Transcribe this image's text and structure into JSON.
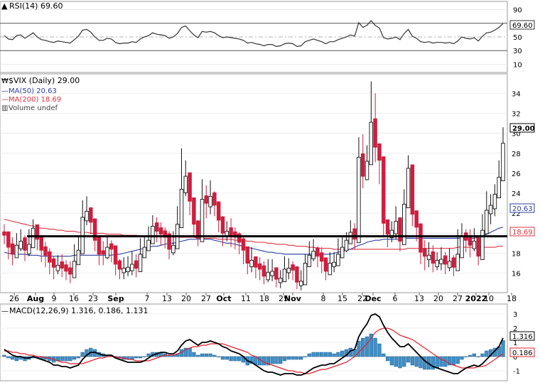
{
  "rsi_panel": {
    "label": "RSI(14) 69.60",
    "last": 69.6,
    "ticks": [
      90,
      70,
      50,
      30,
      10
    ],
    "last_label": "69.60",
    "overbought": 70,
    "oversold": 30
  },
  "price_panel": {
    "title": "$VIX (Daily) 29.00",
    "ma50_label": "MA(50) 20.63",
    "ma200_label": "MA(200) 18.69",
    "volume_label": "Volume undef",
    "ticks": [
      34,
      32,
      30,
      28,
      26,
      24,
      22,
      20,
      18,
      16
    ],
    "last_label": "29.00",
    "ma50_last_label": "20.63",
    "ma200_last_label": "18.69",
    "support_line": 19.7
  },
  "x_labels": [
    "26",
    "Aug",
    "9",
    "16",
    "23",
    "Sep",
    "7",
    "13",
    "20",
    "27",
    "Oct",
    "11",
    "18",
    "25",
    "Nov",
    "8",
    "15",
    "22",
    "Dec",
    "6",
    "13",
    "20",
    "27",
    "2022",
    "10",
    "18"
  ],
  "macd_panel": {
    "label": "MACD(12,26,9) 1.316, 0.186, 1.131",
    "ticks": [
      3,
      2,
      1,
      0,
      -1
    ],
    "macd_last_label": "1.316",
    "signal_last_label": "0.186"
  },
  "colors": {
    "up": "#111111",
    "down": "#cc1f3f",
    "ma50": "#2a3f9e",
    "ma200": "#d9333f",
    "hist": "#3f8fc7",
    "macd": "#000000",
    "signal": "#e0202a"
  },
  "chart_data": {
    "type": "candlestick",
    "ticker": "$VIX",
    "period": "Daily",
    "start_date": "2021-07-19",
    "x_tick_labels": [
      "26",
      "Aug",
      "9",
      "16",
      "23",
      "Sep",
      "7",
      "13",
      "20",
      "27",
      "Oct",
      "11",
      "18",
      "25",
      "Nov",
      "8",
      "15",
      "22",
      "Dec",
      "6",
      "13",
      "20",
      "27",
      "2022",
      "10",
      "18"
    ],
    "ylim": [
      14.2,
      35.8
    ],
    "close": [
      19.8,
      18.6,
      17.9,
      18.8,
      19.2,
      18.3,
      18.9,
      20.5,
      19.4,
      18.3,
      17.8,
      17.1,
      16.6,
      16.8,
      16.5,
      16.2,
      15.9,
      17.2,
      18.3,
      21.6,
      22.2,
      21.1,
      19.3,
      17.9,
      17.9,
      18.6,
      18.4,
      16.9,
      16.4,
      16.5,
      16.6,
      16.9,
      16.5,
      17.9,
      18.6,
      19.3,
      20.7,
      20.2,
      19.9,
      19.6,
      18.4,
      18.8,
      20.9,
      24.4,
      25.7,
      23.2,
      20.9,
      19.5,
      23.4,
      23.0,
      23.7,
      22.8,
      21.3,
      20.0,
      20.2,
      19.8,
      19.6,
      19.1,
      18.3,
      17.0,
      17.3,
      16.6,
      16.4,
      15.7,
      16.1,
      16.2,
      15.4,
      15.5,
      16.4,
      16.5,
      16.3,
      15.1,
      15.2,
      17.0,
      17.8,
      18.2,
      17.7,
      17.2,
      16.2,
      17.0,
      17.1,
      17.9,
      18.6,
      19.3,
      20.1,
      19.4,
      27.6,
      25.7,
      27.2,
      31.1,
      28.6,
      27.3,
      21.0,
      19.9,
      20.3,
      21.2,
      19.2,
      22.9,
      26.5,
      21.9,
      20.6,
      18.1,
      17.7,
      17.8,
      17.0,
      17.3,
      17.4,
      16.9,
      17.2,
      16.6,
      17.9,
      19.7,
      19.3,
      18.8,
      19.2,
      17.7,
      20.3,
      22.3,
      22.8,
      23.9,
      25.6,
      29.0
    ],
    "high": [
      20.9,
      19.9,
      19.6,
      20.0,
      20.4,
      19.8,
      20.4,
      21.4,
      20.8,
      19.7,
      19.1,
      18.5,
      17.7,
      17.8,
      17.9,
      17.3,
      17.2,
      18.9,
      19.7,
      23.3,
      23.7,
      22.6,
      20.9,
      19.3,
      19.2,
      19.7,
      19.3,
      18.5,
      17.4,
      17.6,
      17.7,
      18.2,
      17.9,
      19.5,
      19.7,
      20.7,
      21.8,
      21.6,
      21.1,
      20.6,
      20.2,
      20.2,
      22.7,
      28.5,
      27.3,
      24.8,
      22.2,
      21.0,
      25.4,
      24.8,
      25.3,
      24.2,
      22.7,
      21.7,
      21.2,
      21.5,
      20.6,
      20.1,
      19.7,
      18.3,
      18.6,
      17.6,
      17.6,
      17.2,
      17.4,
      17.4,
      16.6,
      16.3,
      17.7,
      17.5,
      17.2,
      16.3,
      16.3,
      17.9,
      19.2,
      19.4,
      18.7,
      18.6,
      17.1,
      18.1,
      18.1,
      19.5,
      19.6,
      20.1,
      21.3,
      21.0,
      29.6,
      29.9,
      28.8,
      35.2,
      34.0,
      28.6,
      22.9,
      21.3,
      21.2,
      22.7,
      20.9,
      24.4,
      27.8,
      24.1,
      22.0,
      19.6,
      19.3,
      19.1,
      18.8,
      18.1,
      18.6,
      18.1,
      18.5,
      17.8,
      20.4,
      21.0,
      20.4,
      20.4,
      20.5,
      19.1,
      21.9,
      24.2,
      23.9,
      24.9,
      27.3,
      30.6
    ],
    "low": [
      18.9,
      17.4,
      16.8,
      17.6,
      18.2,
      17.2,
      17.7,
      18.6,
      18.3,
      17.1,
      16.6,
      15.9,
      15.4,
      15.9,
      15.6,
      15.3,
      15.0,
      16.1,
      17.2,
      20.4,
      20.8,
      19.9,
      18.2,
      16.8,
      16.8,
      17.4,
      17.1,
      15.8,
      15.4,
      15.4,
      15.7,
      15.8,
      15.6,
      16.8,
      17.6,
      18.4,
      19.3,
      19.1,
      18.8,
      18.5,
      17.4,
      17.8,
      19.5,
      22.6,
      23.7,
      21.8,
      19.6,
      18.7,
      21.4,
      21.5,
      21.9,
      21.7,
      20.1,
      18.7,
      19.2,
      18.6,
      18.4,
      17.9,
      16.9,
      15.9,
      16.1,
      15.5,
      15.3,
      14.9,
      15.1,
      15.2,
      14.6,
      14.5,
      15.4,
      15.4,
      15.3,
      14.4,
      14.3,
      15.8,
      16.9,
      17.2,
      16.6,
      16.0,
      15.3,
      15.9,
      16.1,
      16.9,
      17.5,
      18.1,
      19.0,
      18.4,
      23.8,
      24.5,
      25.3,
      28.4,
      27.1,
      24.9,
      19.8,
      18.6,
      19.1,
      19.4,
      18.2,
      21.1,
      23.4,
      20.7,
      19.2,
      16.9,
      16.3,
      16.6,
      16.1,
      16.3,
      16.3,
      15.9,
      16.2,
      15.7,
      16.6,
      18.5,
      18.1,
      17.6,
      18.2,
      16.8,
      18.6,
      21.0,
      20.9,
      21.7,
      24.2,
      25.3
    ],
    "up": [
      false,
      false,
      false,
      true,
      true,
      false,
      true,
      true,
      false,
      false,
      false,
      false,
      false,
      true,
      false,
      false,
      false,
      true,
      true,
      true,
      true,
      false,
      false,
      false,
      false,
      true,
      false,
      false,
      false,
      true,
      true,
      true,
      false,
      true,
      true,
      true,
      true,
      false,
      false,
      false,
      false,
      true,
      true,
      true,
      true,
      false,
      false,
      false,
      true,
      false,
      true,
      false,
      false,
      false,
      true,
      false,
      false,
      false,
      false,
      false,
      true,
      false,
      false,
      false,
      true,
      true,
      false,
      true,
      true,
      true,
      false,
      false,
      true,
      true,
      true,
      true,
      false,
      false,
      false,
      true,
      true,
      true,
      true,
      true,
      true,
      false,
      true,
      false,
      true,
      true,
      false,
      false,
      false,
      false,
      true,
      true,
      false,
      true,
      true,
      false,
      false,
      false,
      false,
      true,
      false,
      true,
      true,
      false,
      true,
      false,
      true,
      true,
      false,
      false,
      true,
      false,
      true,
      true,
      true,
      true,
      true,
      true
    ],
    "ma50": [
      18.1,
      18.0,
      17.9,
      17.9,
      17.9,
      17.9,
      17.8,
      17.8,
      17.8,
      17.7,
      17.7,
      17.7,
      17.7,
      17.7,
      17.7,
      17.7,
      17.7,
      17.8,
      17.8,
      17.8,
      17.8,
      17.8,
      17.8,
      17.8,
      17.8,
      17.8,
      17.8,
      17.9,
      17.9,
      18.0,
      18.1,
      18.2,
      18.3,
      18.4,
      18.5,
      18.6,
      18.7,
      18.7,
      18.8,
      18.9,
      19.0,
      19.0,
      19.1,
      19.2,
      19.3,
      19.4,
      19.4,
      19.4,
      19.4,
      19.4,
      19.4,
      19.3,
      19.2,
      19.1,
      19.0,
      19.0,
      18.9,
      18.8,
      18.7,
      18.6,
      18.5,
      18.4,
      18.3,
      18.2,
      18.1,
      18.1,
      18.0,
      18.0,
      17.9,
      17.9,
      17.9,
      17.9,
      17.9,
      17.9,
      17.9,
      17.9,
      17.9,
      17.9,
      17.9,
      17.9,
      18.0,
      18.1,
      18.2,
      18.3,
      18.4,
      18.6,
      18.8,
      18.9,
      19.1,
      19.2,
      19.3,
      19.3,
      19.4,
      19.4,
      19.4,
      19.4,
      19.4,
      19.5,
      19.5,
      19.5,
      19.5,
      19.5,
      19.5,
      19.5,
      19.5,
      19.5,
      19.5,
      19.5,
      19.5,
      19.5,
      19.5,
      19.5,
      19.5,
      19.5,
      19.5,
      19.6,
      19.8,
      19.9,
      20.1,
      20.3,
      20.5,
      20.6
    ],
    "ma200": [
      21.4,
      21.3,
      21.2,
      21.1,
      21.0,
      20.9,
      20.8,
      20.7,
      20.6,
      20.5,
      20.5,
      20.4,
      20.4,
      20.3,
      20.3,
      20.2,
      20.2,
      20.2,
      20.1,
      20.1,
      20.1,
      20.0,
      20.0,
      20.0,
      20.0,
      19.9,
      19.9,
      19.9,
      19.9,
      19.8,
      19.8,
      19.8,
      19.8,
      19.7,
      19.7,
      19.7,
      19.7,
      19.7,
      19.7,
      19.7,
      19.7,
      19.6,
      19.6,
      19.6,
      19.6,
      19.6,
      19.6,
      19.5,
      19.5,
      19.5,
      19.5,
      19.5,
      19.4,
      19.4,
      19.4,
      19.4,
      19.3,
      19.3,
      19.3,
      19.2,
      19.2,
      19.1,
      19.1,
      19.1,
      19.0,
      19.0,
      18.9,
      18.9,
      18.9,
      18.8,
      18.8,
      18.7,
      18.7,
      18.7,
      18.6,
      18.6,
      18.5,
      18.5,
      18.5,
      18.5,
      18.4,
      18.4,
      18.4,
      18.4,
      18.4,
      18.4,
      18.4,
      18.4,
      18.4,
      18.4,
      18.4,
      18.4,
      18.4,
      18.4,
      18.4,
      18.4,
      18.4,
      18.4,
      18.5,
      18.5,
      18.5,
      18.5,
      18.5,
      18.5,
      18.5,
      18.5,
      18.5,
      18.5,
      18.5,
      18.5,
      18.6,
      18.6,
      18.6,
      18.6,
      18.6,
      18.6,
      18.6,
      18.6,
      18.6,
      18.6,
      18.7,
      18.7
    ],
    "rsi": [
      52,
      47,
      46,
      52,
      53,
      48,
      52,
      56,
      50,
      46,
      45,
      43,
      42,
      44,
      43,
      42,
      41,
      46,
      51,
      60,
      61,
      57,
      50,
      45,
      45,
      48,
      47,
      42,
      40,
      41,
      41,
      43,
      42,
      47,
      50,
      52,
      56,
      54,
      53,
      52,
      48,
      50,
      55,
      64,
      66,
      59,
      53,
      49,
      58,
      57,
      58,
      56,
      52,
      49,
      50,
      49,
      48,
      47,
      45,
      41,
      42,
      40,
      39,
      37,
      39,
      39,
      36,
      37,
      40,
      41,
      40,
      36,
      37,
      43,
      45,
      47,
      45,
      43,
      40,
      43,
      43,
      46,
      48,
      50,
      53,
      51,
      71,
      64,
      67,
      74,
      67,
      63,
      49,
      47,
      48,
      50,
      46,
      55,
      61,
      51,
      48,
      43,
      42,
      43,
      41,
      42,
      42,
      41,
      42,
      40,
      44,
      50,
      48,
      47,
      49,
      44,
      51,
      56,
      57,
      60,
      64,
      69.6
    ],
    "macd": [
      0.5,
      0.3,
      0.1,
      0.0,
      0.0,
      -0.1,
      -0.1,
      0.0,
      -0.1,
      -0.2,
      -0.3,
      -0.4,
      -0.6,
      -0.6,
      -0.7,
      -0.7,
      -0.8,
      -0.7,
      -0.6,
      -0.2,
      0.1,
      0.3,
      0.3,
      0.2,
      0.1,
      0.1,
      0.1,
      -0.1,
      -0.2,
      -0.3,
      -0.4,
      -0.4,
      -0.4,
      -0.4,
      -0.3,
      -0.1,
      0.1,
      0.2,
      0.3,
      0.3,
      0.2,
      0.2,
      0.4,
      0.8,
      1.1,
      1.2,
      1.0,
      0.8,
      1.0,
      1.0,
      1.1,
      1.0,
      0.9,
      0.7,
      0.6,
      0.4,
      0.3,
      0.2,
      0.0,
      -0.3,
      -0.4,
      -0.6,
      -0.8,
      -1.0,
      -1.1,
      -1.1,
      -1.2,
      -1.3,
      -1.2,
      -1.2,
      -1.2,
      -1.3,
      -1.3,
      -1.2,
      -1.0,
      -0.8,
      -0.7,
      -0.6,
      -0.6,
      -0.5,
      -0.5,
      -0.3,
      -0.1,
      0.1,
      0.4,
      0.5,
      1.4,
      1.9,
      2.3,
      2.9,
      3.0,
      2.8,
      2.2,
      1.7,
      1.3,
      1.0,
      0.7,
      0.7,
      0.9,
      0.6,
      0.3,
      0.0,
      -0.3,
      -0.5,
      -0.7,
      -0.8,
      -0.9,
      -1.0,
      -1.1,
      -1.2,
      -1.2,
      -1.0,
      -0.8,
      -0.7,
      -0.6,
      -0.7,
      -0.5,
      -0.2,
      0.1,
      0.4,
      0.7,
      1.316
    ],
    "signal": [
      0.4,
      0.4,
      0.3,
      0.3,
      0.2,
      0.2,
      0.1,
      0.1,
      0.0,
      0.0,
      -0.1,
      -0.1,
      -0.2,
      -0.3,
      -0.4,
      -0.4,
      -0.5,
      -0.5,
      -0.5,
      -0.5,
      -0.4,
      -0.3,
      -0.2,
      -0.1,
      -0.1,
      0.0,
      0.0,
      0.0,
      -0.1,
      -0.1,
      -0.2,
      -0.2,
      -0.3,
      -0.3,
      -0.3,
      -0.3,
      -0.2,
      -0.1,
      0.0,
      0.1,
      0.1,
      0.1,
      0.2,
      0.3,
      0.5,
      0.6,
      0.7,
      0.7,
      0.8,
      0.8,
      0.9,
      0.9,
      0.9,
      0.9,
      0.8,
      0.7,
      0.6,
      0.5,
      0.4,
      0.3,
      0.1,
      0.0,
      -0.2,
      -0.4,
      -0.5,
      -0.6,
      -0.7,
      -0.8,
      -0.9,
      -1.0,
      -1.0,
      -1.1,
      -1.1,
      -1.2,
      -1.2,
      -1.1,
      -1.0,
      -0.9,
      -0.9,
      -0.8,
      -0.7,
      -0.6,
      -0.5,
      -0.4,
      -0.2,
      0.0,
      0.3,
      0.6,
      0.9,
      1.3,
      1.7,
      1.9,
      2.0,
      2.0,
      1.9,
      1.7,
      1.5,
      1.4,
      1.3,
      1.2,
      1.0,
      0.8,
      0.6,
      0.4,
      0.2,
      0.0,
      -0.2,
      -0.3,
      -0.5,
      -0.6,
      -0.7,
      -0.8,
      -0.8,
      -0.8,
      -0.8,
      -0.7,
      -0.7,
      -0.6,
      -0.4,
      -0.2,
      0.0,
      0.186
    ]
  }
}
